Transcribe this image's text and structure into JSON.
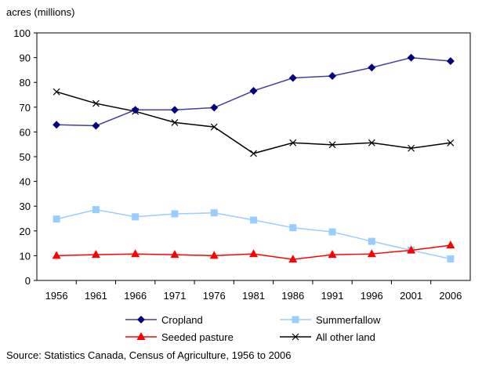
{
  "chart_data": {
    "type": "line",
    "ylabel": "acres (millions)",
    "xlabel": "",
    "ylim": [
      0,
      100
    ],
    "yticks": [
      0,
      10,
      20,
      30,
      40,
      50,
      60,
      70,
      80,
      90,
      100
    ],
    "categories": [
      "1956",
      "1961",
      "1966",
      "1971",
      "1976",
      "1981",
      "1986",
      "1991",
      "1996",
      "2001",
      "2006"
    ],
    "grid": false,
    "legend_position": "bottom",
    "series": [
      {
        "name": "Cropland",
        "color": "#000080",
        "line_color": "#4040a0",
        "marker": "diamond",
        "values": [
          62.9,
          62.5,
          68.9,
          68.9,
          69.8,
          76.6,
          81.8,
          82.6,
          86.0,
          90.0,
          88.6
        ]
      },
      {
        "name": "Summerfallow",
        "color": "#99ccff",
        "line_color": "#99ccff",
        "marker": "square",
        "values": [
          24.8,
          28.6,
          25.7,
          26.9,
          27.3,
          24.4,
          21.3,
          19.6,
          15.8,
          12.2,
          8.7
        ]
      },
      {
        "name": "Seeded pasture",
        "color": "#ff0000",
        "line_color": "#ff0000",
        "marker": "triangle",
        "values": [
          10.0,
          10.4,
          10.7,
          10.4,
          10.0,
          10.7,
          8.5,
          10.4,
          10.7,
          12.2,
          14.2
        ]
      },
      {
        "name": "All other land",
        "color": "#000000",
        "line_color": "#000000",
        "marker": "x",
        "values": [
          76.2,
          71.5,
          68.3,
          63.8,
          62.0,
          51.3,
          55.6,
          54.8,
          55.6,
          53.4,
          55.6
        ]
      }
    ]
  },
  "source": "Source: Statistics Canada, Census of Agriculture, 1956 to 2006"
}
